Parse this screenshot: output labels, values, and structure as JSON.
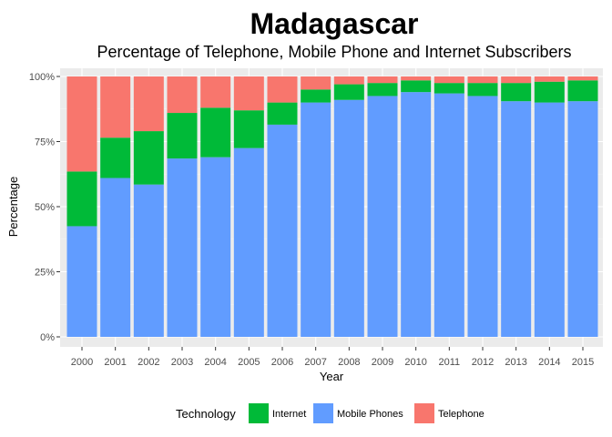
{
  "chart_data": {
    "type": "bar",
    "stacked": "percent",
    "title": "Madagascar",
    "subtitle": "Percentage of Telephone, Mobile Phone and Internet Subscribers",
    "xlabel": "Year",
    "ylabel": "Percentage",
    "ylim": [
      0,
      100
    ],
    "y_ticks": [
      "0%",
      "25%",
      "50%",
      "75%",
      "100%"
    ],
    "y_tick_values": [
      0,
      25,
      50,
      75,
      100
    ],
    "grid": true,
    "background": "#ebebeb",
    "categories": [
      "2000",
      "2001",
      "2002",
      "2003",
      "2004",
      "2005",
      "2006",
      "2007",
      "2008",
      "2009",
      "2010",
      "2011",
      "2012",
      "2013",
      "2014",
      "2015"
    ],
    "series": [
      {
        "name": "Mobile Phones",
        "color": "#619cff",
        "values": [
          42.5,
          61,
          58.5,
          68.5,
          69,
          72.5,
          81.5,
          90,
          91,
          92.5,
          94,
          93.5,
          92.5,
          90.5,
          90,
          90.5
        ]
      },
      {
        "name": "Internet",
        "color": "#00ba38",
        "values": [
          21,
          15.5,
          20.5,
          17.5,
          19,
          14.5,
          8.5,
          5,
          6,
          5,
          4.5,
          4,
          5,
          7,
          8,
          8
        ]
      },
      {
        "name": "Telephone",
        "color": "#f8766d",
        "values": [
          36.5,
          23.5,
          21,
          14,
          12,
          13,
          10,
          5,
          3,
          2.5,
          1.5,
          2.5,
          2.5,
          2.5,
          2,
          1.5
        ]
      }
    ],
    "legend": {
      "title": "Technology",
      "position": "bottom",
      "items": [
        {
          "label": "Internet",
          "color": "#00ba38"
        },
        {
          "label": "Mobile Phones",
          "color": "#619cff"
        },
        {
          "label": "Telephone",
          "color": "#f8766d"
        }
      ]
    }
  }
}
